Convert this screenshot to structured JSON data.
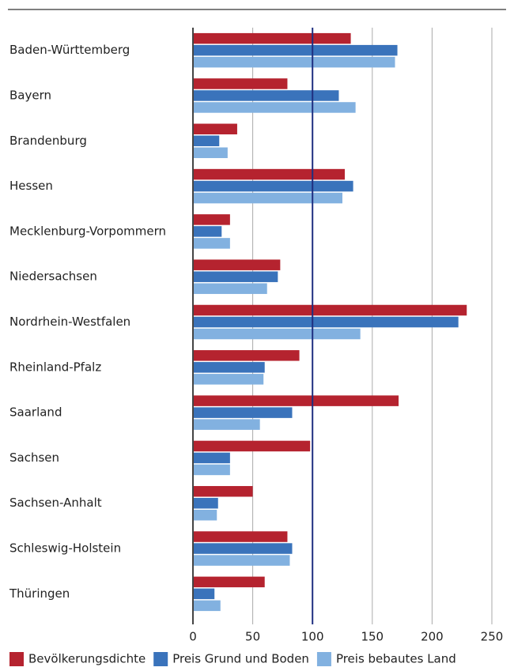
{
  "chart_data": {
    "type": "barh",
    "categories": [
      "Baden-Württemberg",
      "Bayern",
      "Brandenburg",
      "Hessen",
      "Mecklenburg-Vorpommern",
      "Niedersachsen",
      "Nordrhein-Westfalen",
      "Rheinland-Pfalz",
      "Saarland",
      "Sachsen",
      "Sachsen-Anhalt",
      "Schleswig-Holstein",
      "Thüringen"
    ],
    "series": [
      {
        "name": "Bevölkerungsdichte",
        "color": "#b5232f",
        "values": [
          132,
          79,
          37,
          127,
          31,
          73,
          229,
          89,
          172,
          98,
          50,
          79,
          60
        ]
      },
      {
        "name": "Preis Grund und Boden",
        "color": "#3a73bb",
        "values": [
          171,
          122,
          22,
          134,
          24,
          71,
          222,
          60,
          83,
          31,
          21,
          83,
          18
        ]
      },
      {
        "name": "Preis bebautes Land",
        "color": "#82b1e0",
        "values": [
          169,
          136,
          29,
          125,
          31,
          62,
          140,
          59,
          56,
          31,
          20,
          81,
          23
        ]
      }
    ],
    "xlim": [
      0,
      250
    ],
    "xticks": [
      0,
      50,
      100,
      150,
      200,
      250
    ],
    "grid": true,
    "reference_line": 100,
    "legend": "bottom"
  }
}
